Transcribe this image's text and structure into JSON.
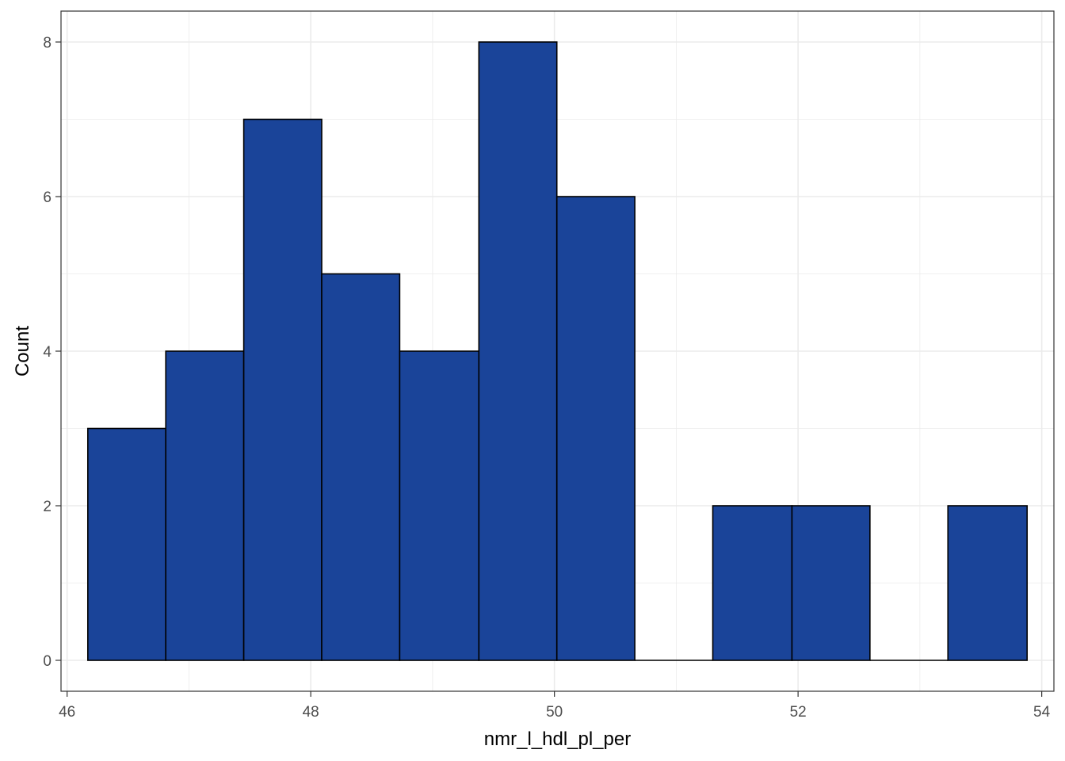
{
  "chart_data": {
    "type": "bar",
    "subtype": "histogram",
    "title": "",
    "xlabel": "nmr_l_hdl_pl_per",
    "ylabel": "Count",
    "xlim": [
      45.95,
      54.1
    ],
    "ylim": [
      -0.4,
      8.4
    ],
    "x_ticks": [
      46,
      48,
      50,
      52,
      54
    ],
    "y_ticks": [
      0,
      2,
      4,
      6,
      8
    ],
    "bins": [
      {
        "x0": 46.17,
        "x1": 46.81,
        "count": 3
      },
      {
        "x0": 46.81,
        "x1": 47.45,
        "count": 4
      },
      {
        "x0": 47.45,
        "x1": 48.09,
        "count": 7
      },
      {
        "x0": 48.09,
        "x1": 48.73,
        "count": 5
      },
      {
        "x0": 48.73,
        "x1": 49.38,
        "count": 4
      },
      {
        "x0": 49.38,
        "x1": 50.02,
        "count": 8
      },
      {
        "x0": 50.02,
        "x1": 50.66,
        "count": 6
      },
      {
        "x0": 50.66,
        "x1": 51.3,
        "count": 0
      },
      {
        "x0": 51.3,
        "x1": 51.95,
        "count": 2
      },
      {
        "x0": 51.95,
        "x1": 52.59,
        "count": 2
      },
      {
        "x0": 52.59,
        "x1": 53.23,
        "count": 0
      },
      {
        "x0": 53.23,
        "x1": 53.88,
        "count": 2
      }
    ],
    "grid": true,
    "legend": "none",
    "bar_fill": "#1a4499",
    "bar_outline": "#000000",
    "panel_border": "#333333",
    "grid_color": "#ebebeb"
  }
}
